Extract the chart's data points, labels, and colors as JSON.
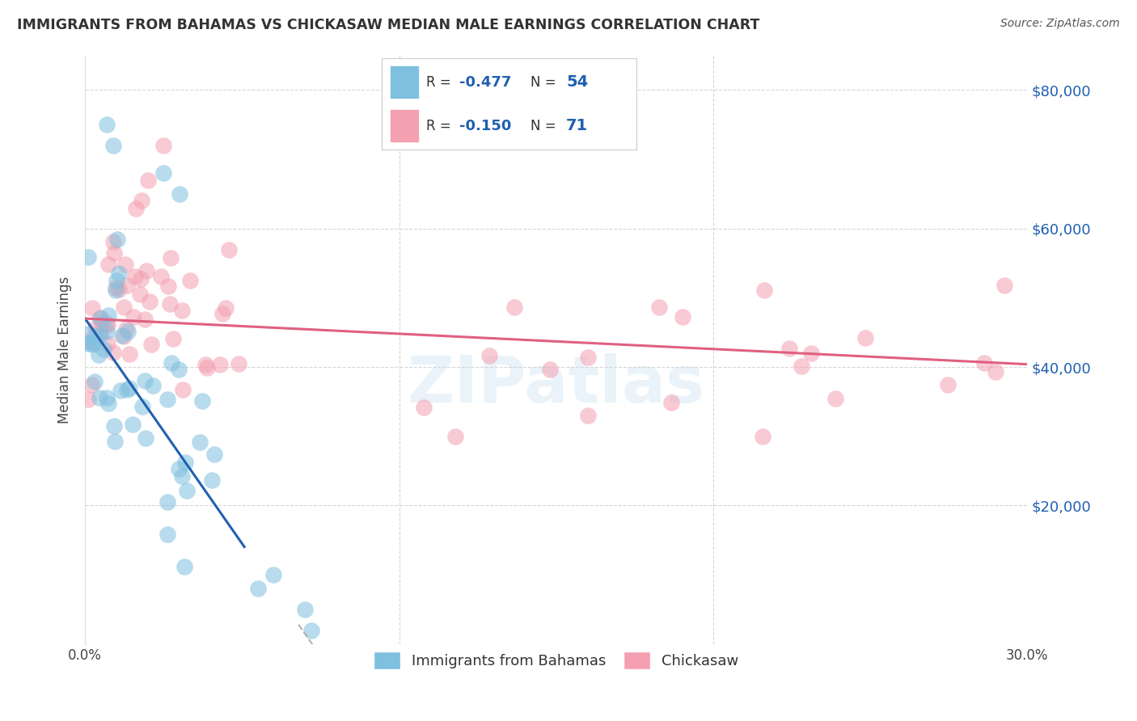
{
  "title": "IMMIGRANTS FROM BAHAMAS VS CHICKASAW MEDIAN MALE EARNINGS CORRELATION CHART",
  "source": "Source: ZipAtlas.com",
  "ylabel": "Median Male Earnings",
  "xlim": [
    0.0,
    0.3
  ],
  "ylim": [
    0,
    85000
  ],
  "legend1_r": "-0.477",
  "legend1_n": "54",
  "legend2_r": "-0.150",
  "legend2_n": "71",
  "blue_color": "#7fbfdf",
  "pink_color": "#f4a0b0",
  "blue_line_color": "#2060b0",
  "pink_line_color": "#e06080",
  "dashed_color": "#b0b0b0",
  "watermark": "ZIPatlas",
  "blue_label": "Immigrants from Bahamas",
  "pink_label": "Chickasaw",
  "right_ytick_labels": [
    "$80,000",
    "$60,000",
    "$40,000",
    "$20,000"
  ],
  "right_ytick_vals": [
    80000,
    60000,
    40000,
    20000
  ],
  "right_ytick_color": "#2060b0"
}
